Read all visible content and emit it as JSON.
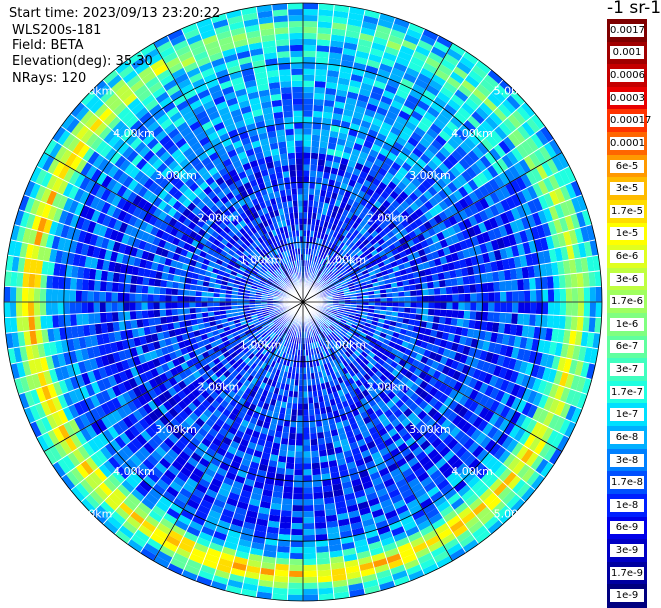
{
  "info": {
    "start_time": "Start time: 2023/09/13 23:20:22",
    "instrument": "WLS200s-181",
    "field": "Field: BETA",
    "elevation": "Elevation(deg): 35.30",
    "nrays": "NRays: 120"
  },
  "colorbar": {
    "unit": "-1 sr-1",
    "labels": [
      "0.0017",
      "0.001",
      "0.0006",
      "0.0003",
      "0.00017",
      "0.0001",
      "6e-5",
      "3e-5",
      "1.7e-5",
      "1e-5",
      "6e-6",
      "3e-6",
      "1.7e-6",
      "1e-6",
      "6e-7",
      "3e-7",
      "1.7e-7",
      "1e-7",
      "6e-8",
      "3e-8",
      "1.7e-8",
      "1e-8",
      "6e-9",
      "3e-9",
      "1.7e-9",
      "1e-9"
    ],
    "colors": [
      "#7f0000",
      "#a00000",
      "#c40000",
      "#e80000",
      "#ff3300",
      "#ff6600",
      "#ff9900",
      "#ffbb00",
      "#ffdd00",
      "#ffff00",
      "#e0ff1f",
      "#bfff40",
      "#9fff60",
      "#80ff80",
      "#60ff9f",
      "#40ffbf",
      "#1fffe0",
      "#00e0ff",
      "#00b0ff",
      "#0080ff",
      "#0050ff",
      "#0020ff",
      "#0000e8",
      "#0000c4",
      "#0000a0",
      "#00007f"
    ]
  },
  "chart_data": {
    "type": "heatmap",
    "projection": "polar PPI scan",
    "n_rays": 120,
    "elevation_deg": 35.3,
    "field": "BETA",
    "unit": "-1 sr-1",
    "range_rings_km": [
      1,
      2,
      3,
      4,
      5
    ],
    "range_labels": [
      "1.00km",
      "2.00km",
      "3.00km",
      "4.00km",
      "5.00km"
    ],
    "max_range_km": 5.0,
    "color_scale": "log",
    "value_range": [
      1e-09,
      0.0017
    ],
    "typical_values": {
      "near_range_0_to_3km": "1e-8 to 1e-7",
      "far_ring_4.3_to_4.8km_south_and_west": "3e-6 to 1e-5",
      "far_ring_north_east": "1e-7 to 1e-6"
    }
  }
}
